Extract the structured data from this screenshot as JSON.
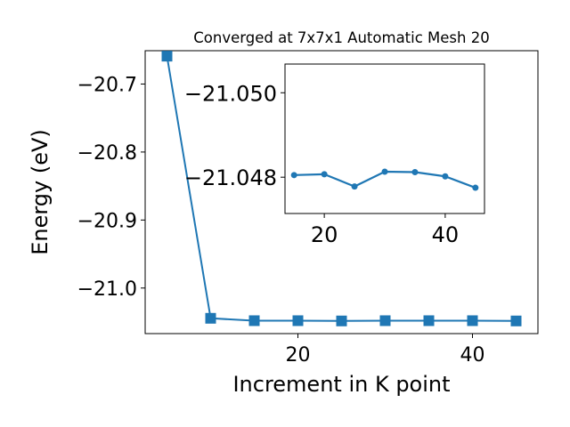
{
  "chart_data": [
    {
      "type": "line",
      "title": "Converged at 7x7x1 Automatic Mesh 20",
      "xlabel": "Increment in K point",
      "ylabel": "Energy (eV)",
      "xlim": [
        2.5,
        47.5
      ],
      "ylim": [
        -21.067,
        -20.651
      ],
      "xticks": [
        20,
        40
      ],
      "yticks": [
        -20.7,
        -20.8,
        -20.9,
        -21.0
      ],
      "ytick_labels": [
        "−20.7",
        "−20.8",
        "−20.9",
        "−21.0"
      ],
      "marker": "square",
      "grid": false,
      "x": [
        5,
        10,
        15,
        20,
        25,
        30,
        35,
        40,
        45
      ],
      "series": [
        {
          "values": [
            -20.659,
            -21.0445,
            -21.048,
            -21.048,
            -21.0484,
            -21.048,
            -21.048,
            -21.048,
            -21.0484
          ],
          "color": "#1f77b4"
        }
      ]
    },
    {
      "type": "line",
      "title": "",
      "xlabel": "",
      "ylabel": "",
      "xlim": [
        13.5,
        46.5
      ],
      "ylim": [
        -21.04714,
        -21.05068
      ],
      "xticks": [
        20,
        40
      ],
      "yticks": [
        -21.05,
        -21.048
      ],
      "ytick_labels": [
        "−21.050",
        "−21.048"
      ],
      "marker": "circle",
      "grid": false,
      "x": [
        15,
        20,
        25,
        30,
        35,
        40,
        45
      ],
      "series": [
        {
          "values": [
            -21.04805,
            -21.04807,
            -21.04778,
            -21.04813,
            -21.04812,
            -21.04802,
            -21.04775
          ],
          "color": "#1f77b4"
        }
      ]
    }
  ]
}
